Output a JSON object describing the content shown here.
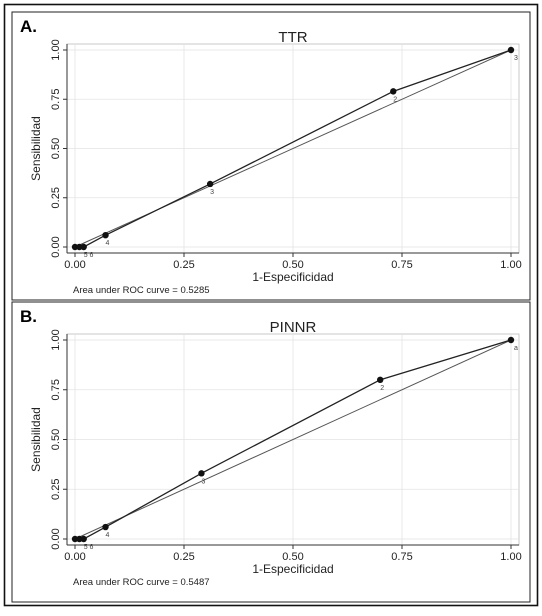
{
  "figure": {
    "panels": [
      {
        "label": "A.",
        "title": "TTR",
        "footnote": "Area under ROC curve = 0.5285"
      },
      {
        "label": "B.",
        "title": "PINNR",
        "footnote": "Area under ROC curve = 0.5487"
      }
    ]
  },
  "chart_data": [
    {
      "type": "line",
      "title": "TTR",
      "xlabel": "1-Especificidad",
      "ylabel": "Sensibilidad",
      "xlim": [
        0,
        1
      ],
      "ylim": [
        0,
        1
      ],
      "xticks": [
        "0.00",
        "0.25",
        "0.50",
        "0.75",
        "1.00"
      ],
      "yticks": [
        "0.00",
        "0.25",
        "0.50",
        "0.75",
        "1.00"
      ],
      "grid": true,
      "series": [
        {
          "points": [
            {
              "x": 0.0,
              "y": 0.0,
              "label": ""
            },
            {
              "x": 0.01,
              "y": 0.0,
              "label": ""
            },
            {
              "x": 0.02,
              "y": 0.0,
              "label": "5 6"
            },
            {
              "x": 0.07,
              "y": 0.06,
              "label": "4"
            },
            {
              "x": 0.31,
              "y": 0.32,
              "label": "3"
            },
            {
              "x": 0.73,
              "y": 0.79,
              "label": "2"
            },
            {
              "x": 1.0,
              "y": 1.0,
              "label": "3"
            }
          ]
        },
        {
          "points": [
            {
              "x": 0,
              "y": 0
            },
            {
              "x": 1,
              "y": 1
            }
          ]
        }
      ],
      "annotation": "Area under ROC curve = 0.5285"
    },
    {
      "type": "line",
      "title": "PINNR",
      "xlabel": "1-Especificidad",
      "ylabel": "Sensibilidad",
      "xlim": [
        0,
        1
      ],
      "ylim": [
        0,
        1
      ],
      "xticks": [
        "0.00",
        "0.25",
        "0.50",
        "0.75",
        "1.00"
      ],
      "yticks": [
        "0.00",
        "0.25",
        "0.50",
        "0.75",
        "1.00"
      ],
      "grid": true,
      "series": [
        {
          "points": [
            {
              "x": 0.0,
              "y": 0.0,
              "label": ""
            },
            {
              "x": 0.01,
              "y": 0.0,
              "label": ""
            },
            {
              "x": 0.02,
              "y": 0.0,
              "label": "5 6"
            },
            {
              "x": 0.07,
              "y": 0.06,
              "label": "4"
            },
            {
              "x": 0.29,
              "y": 0.33,
              "label": "3"
            },
            {
              "x": 0.7,
              "y": 0.8,
              "label": "2"
            },
            {
              "x": 1.0,
              "y": 1.0,
              "label": "a"
            }
          ]
        },
        {
          "points": [
            {
              "x": 0,
              "y": 0
            },
            {
              "x": 1,
              "y": 1
            }
          ]
        }
      ],
      "annotation": "Area under ROC curve = 0.5487"
    }
  ]
}
